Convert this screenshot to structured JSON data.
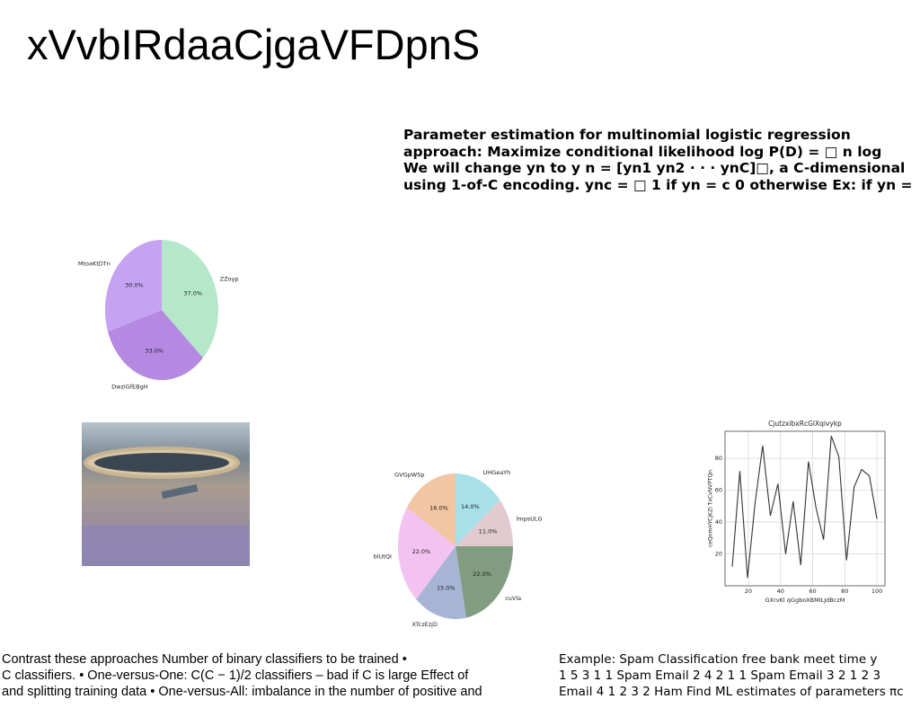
{
  "title": "xVvbIRdaaCjgaVFDpnS",
  "middle_text": [
    "Parameter estimation for multinomial logistic regression",
    "approach: Maximize conditional likelihood log P(D) = □ n log",
    "We will change yn to y n = [yn1 yn2 · · · ynC]□, a C-dimensional",
    "using 1-of-C encoding. ync = □ 1 if yn = c 0 otherwise Ex: if yn ="
  ],
  "bottom_left_text": [
    "Contrast these approaches Number of binary classifiers to be trained •",
    "C classifiers. • One-versus-One: C(C − 1)/2 classifiers – bad if C is large Effect of",
    "and splitting training data • One-versus-All: imbalance in the number of positive and"
  ],
  "bottom_right_text": [
    "Example: Spam Classification free bank meet time y",
    "1 5 3 1 1 Spam Email 2 4 2 1 1 Spam Email 3 2 1 2 3",
    "Email 4 1 2 3 2 Ham Find ML estimates of parameters πc"
  ],
  "chart_data": [
    {
      "type": "pie",
      "categories": [
        "ZZoyp",
        "DwziGfEBgH",
        "MtoaKtDTn"
      ],
      "values": [
        37,
        33,
        30
      ],
      "value_labels": [
        "37.0%",
        "33.0%",
        "30.0%"
      ],
      "colors": [
        "#b5e8c9",
        "#b589e2",
        "#c6a2f2"
      ]
    },
    {
      "type": "pie",
      "categories": [
        "UHGeaYh",
        "lmpsULG",
        "cuVla",
        "XTczEzjD",
        "blUtQI",
        "GVGpWSp"
      ],
      "values": [
        14,
        11,
        22,
        15,
        22,
        16
      ],
      "value_labels": [
        "14.0%",
        "11.0%",
        "22.0%",
        "15.0%",
        "22.0%",
        "16.0%"
      ],
      "colors": [
        "#a7e0e9",
        "#e2cbd0",
        "#819c80",
        "#a7b5d5",
        "#f2c2f0",
        "#f2c5a3"
      ]
    },
    {
      "type": "line",
      "title": "CjutzxibxRcGlXqivykp",
      "x_label": "GXrvKl qGgboXBMILJdBczM",
      "y_label": "ceQnmHYCjKZi TxCvNVPTQn",
      "x": [
        10,
        14.7,
        19.5,
        24.2,
        28.9,
        33.7,
        38.4,
        43.2,
        47.9,
        52.6,
        57.4,
        62.1,
        66.8,
        71.6,
        76.3,
        81.1,
        85.8,
        90.5,
        95.3,
        100
      ],
      "series": [
        {
          "name": "series",
          "color": "#333333",
          "values": [
            12,
            72,
            5,
            52,
            88,
            44,
            64,
            20,
            53,
            13,
            78,
            49,
            29,
            94,
            81,
            16,
            62,
            73,
            69,
            42
          ]
        }
      ],
      "xlim": [
        5.5,
        105
      ],
      "ylim": [
        0,
        97
      ],
      "xticks": [
        20,
        40,
        60,
        80,
        100
      ],
      "yticks": [
        20,
        40,
        60,
        80
      ],
      "grid": true
    }
  ]
}
